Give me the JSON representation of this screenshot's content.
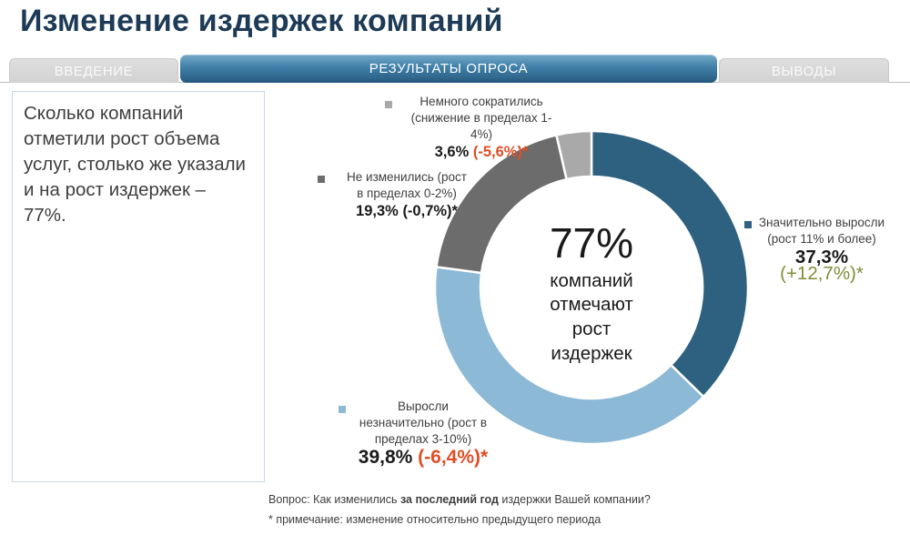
{
  "title": "Изменение издержек компаний",
  "tabs": [
    {
      "label": "ВВЕДЕНИЕ",
      "active": false
    },
    {
      "label": "РЕЗУЛЬТАТЫ ОПРОСА",
      "active": true
    },
    {
      "label": "ВЫВОДЫ",
      "active": false
    }
  ],
  "callout": {
    "text": "Сколько компаний отметили рост объема услуг, столько же указали и на рост издержек – 77%."
  },
  "chart_data": {
    "type": "pie",
    "subtype": "donut",
    "start_angle_deg": 0,
    "direction": "clockwise",
    "center": {
      "headline": "77%",
      "caption": "компаний отмечают рост издержек"
    },
    "segments": [
      {
        "name": "Значительно выросли (рост 11% и более)",
        "label_lines": [
          "Значительно выросли",
          "(рост 11% и более)"
        ],
        "value_pct": 37.3,
        "value_label": "37,3%",
        "change_label": "(+12,7%)*",
        "color": "#2E6180",
        "change_color": "#7E8E35"
      },
      {
        "name": "Выросли незначительно (рост в пределах 3-10%)",
        "label_lines": [
          "Выросли",
          "незначительно (рост в",
          "пределах 3-10%)"
        ],
        "value_pct": 39.8,
        "value_label": "39,8%",
        "change_label": "(-6,4%)*",
        "color": "#8CB9D5",
        "change_color": "#E04E26"
      },
      {
        "name": "Не изменились (рост в пределах 0-2%)",
        "label_lines": [
          "Не изменились (рост",
          "в пределах 0-2%)"
        ],
        "value_pct": 19.3,
        "value_label": "19,3%",
        "change_label": "(-0,7%)*",
        "color": "#6C6C6C",
        "change_color": "#1a1a1a"
      },
      {
        "name": "Немного сократились (снижение в пределах 1-4%)",
        "label_lines": [
          "Немного сократились",
          "(снижение в пределах 1-4%)"
        ],
        "value_pct": 3.6,
        "value_label": "3,6%",
        "change_label": "(-5,6%)*",
        "color": "#A9A9A9",
        "change_color": "#E04E26"
      }
    ]
  },
  "footnotes": {
    "question": {
      "prefix": "Вопрос: Как изменились ",
      "bold": "за последний год",
      "suffix": " издержки Вашей компании?"
    },
    "note": "* примечание: изменение относительно предыдущего периода"
  }
}
